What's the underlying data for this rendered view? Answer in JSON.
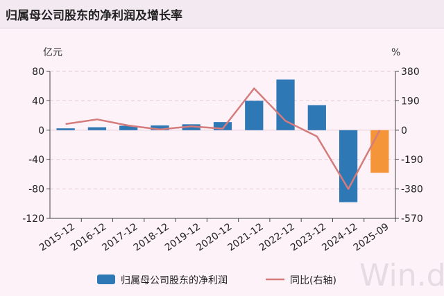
{
  "header": {
    "title": "归属母公司股东的净利润及增长率"
  },
  "watermark": "Win.d",
  "chart_data": {
    "type": "bar",
    "categories": [
      "2015-12",
      "2016-12",
      "2017-12",
      "2018-12",
      "2019-12",
      "2020-12",
      "2021-12",
      "2022-12",
      "2023-12",
      "2024-12",
      "2025-09"
    ],
    "series": [
      {
        "name": "归属母公司股东的净利润",
        "type": "bar",
        "axis": "left",
        "color": "#2e78b5",
        "highlight_color": "#f39538",
        "highlight_index": 10,
        "values": [
          2.5,
          4,
          6,
          6.5,
          8,
          11,
          40,
          69,
          34,
          -98,
          -58
        ]
      },
      {
        "name": "同比(右轴)",
        "type": "line",
        "axis": "right",
        "color": "#d47c7c",
        "values": [
          40,
          70,
          30,
          5,
          25,
          10,
          270,
          60,
          -40,
          -380,
          0
        ]
      }
    ],
    "y_left": {
      "label": "亿元",
      "ylim": [
        -120,
        80
      ],
      "ticks": [
        80,
        40,
        0,
        -40,
        -80,
        -120
      ]
    },
    "y_right": {
      "label": "%",
      "ylim": [
        -570,
        380
      ],
      "ticks": [
        380,
        190,
        0,
        -190,
        -380,
        -570
      ]
    },
    "grid": true,
    "legend": "bottom"
  }
}
